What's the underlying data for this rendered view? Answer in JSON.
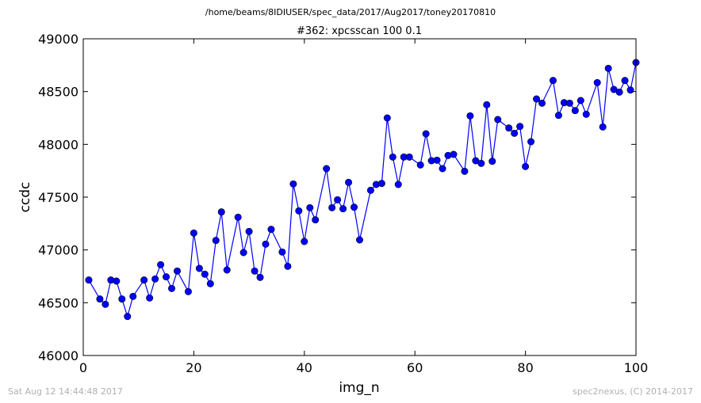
{
  "chart_data": {
    "type": "line",
    "suptitle": "/home/beams/8IDIUSER/spec_data/2017/Aug2017/toney20170810",
    "title": "#362: xpcsscan 100 0.1",
    "xlabel": "img_n",
    "ylabel": "ccdc",
    "xlim": [
      0,
      100
    ],
    "ylim": [
      46000,
      49000
    ],
    "xticks": [
      0,
      20,
      40,
      60,
      80,
      100
    ],
    "yticks": [
      46000,
      46500,
      47000,
      47500,
      48000,
      48500,
      49000
    ],
    "grid": false,
    "line_color": "#0000ff",
    "marker_color": "#0000ff",
    "series": [
      {
        "x": [
          1,
          3,
          4,
          5,
          6,
          7,
          8,
          9,
          11,
          12,
          13,
          14,
          15,
          16,
          17,
          19,
          20,
          21,
          22,
          23,
          24,
          25,
          26,
          28,
          29,
          30,
          31,
          32,
          33,
          34,
          36,
          37,
          38,
          39,
          40,
          41,
          42,
          44,
          45,
          46,
          47,
          48,
          49,
          50,
          52,
          53,
          54,
          55,
          56,
          57,
          58,
          59,
          61,
          62,
          63,
          64,
          65,
          66,
          67,
          69,
          70,
          71,
          72,
          73,
          74,
          75,
          77,
          78,
          79,
          80,
          81,
          82,
          83,
          85,
          86,
          87,
          88,
          89,
          90,
          91,
          93,
          94,
          95,
          96,
          97,
          98,
          99,
          100
        ],
        "y": [
          46715,
          46535,
          46485,
          46715,
          46705,
          46535,
          46370,
          46560,
          46715,
          46545,
          46725,
          46860,
          46745,
          46635,
          46800,
          46605,
          47160,
          46825,
          46770,
          46680,
          47090,
          47360,
          46810,
          47310,
          46975,
          47175,
          46800,
          46740,
          47055,
          47195,
          46980,
          46845,
          47625,
          47370,
          47080,
          47400,
          47285,
          47770,
          47400,
          47475,
          47390,
          47640,
          47405,
          47095,
          47565,
          47620,
          47630,
          48250,
          47880,
          47620,
          47880,
          47880,
          47805,
          48100,
          47845,
          47850,
          47770,
          47895,
          47905,
          47745,
          48270,
          47845,
          47820,
          48375,
          47840,
          48235,
          48155,
          48105,
          48170,
          47790,
          48025,
          48430,
          48390,
          48605,
          48275,
          48395,
          48390,
          48320,
          48415,
          48285,
          48585,
          48165,
          48720,
          48520,
          48495,
          48605,
          48515,
          48775
        ]
      }
    ]
  },
  "footer": {
    "left": "Sat Aug 12 14:44:48 2017",
    "right": "spec2nexus, (C) 2014-2017"
  }
}
